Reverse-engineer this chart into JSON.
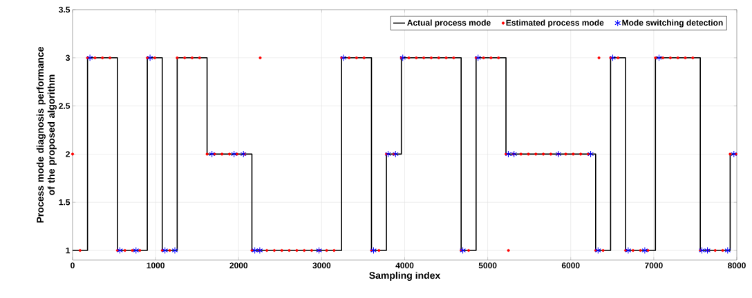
{
  "chart_data": {
    "type": "step",
    "xlabel": "Sampling index",
    "ylabel": "Process mode diagnosis performance of the proposed algorithm",
    "xlim": [
      0,
      8000
    ],
    "ylim": [
      0.9,
      3.5
    ],
    "xticks": [
      0,
      1000,
      2000,
      3000,
      4000,
      5000,
      6000,
      7000,
      8000
    ],
    "yticks": [
      1,
      1.5,
      2,
      2.5,
      3,
      3.5
    ],
    "grid": true,
    "legend": "top right",
    "series": [
      {
        "name": "Actual process mode",
        "color": "#000000",
        "marker": "none",
        "line_style": "solid",
        "x": [
          0,
          180,
          540,
          900,
          1080,
          1260,
          1620,
          2160,
          3240,
          3600,
          3780,
          3960,
          4680,
          4860,
          5220,
          6300,
          6480,
          6660,
          7020,
          7560,
          7920,
          8000
        ],
        "values": [
          1,
          3,
          1,
          3,
          1,
          3,
          2,
          1,
          3,
          1,
          2,
          3,
          1,
          3,
          2,
          1,
          3,
          1,
          3,
          1,
          2,
          2
        ]
      },
      {
        "name": "Estimated process mode",
        "type": "scatter",
        "color": "#ff0000",
        "marker": "circle",
        "x": [
          0,
          90,
          180,
          270,
          360,
          450,
          540,
          630,
          720,
          810,
          900,
          990,
          1080,
          1170,
          1260,
          1350,
          1440,
          1530,
          1620,
          1710,
          1800,
          1890,
          1980,
          2070,
          2160,
          2250,
          2260,
          2340,
          2430,
          2520,
          2610,
          2700,
          2790,
          2880,
          2970,
          3060,
          3150,
          3240,
          3330,
          3420,
          3510,
          3600,
          3690,
          3780,
          3870,
          3960,
          4050,
          4140,
          4230,
          4320,
          4410,
          4500,
          4590,
          4680,
          4770,
          4860,
          4950,
          5040,
          5130,
          5220,
          5250,
          5310,
          5400,
          5490,
          5580,
          5670,
          5760,
          5850,
          5940,
          6030,
          6120,
          6210,
          6300,
          6340,
          6390,
          6480,
          6570,
          6660,
          6750,
          6840,
          6930,
          7020,
          7110,
          7200,
          7290,
          7380,
          7470,
          7560,
          7650,
          7740,
          7830,
          7920,
          7990
        ],
        "values": [
          2,
          1,
          3,
          3,
          3,
          3,
          1,
          1,
          1,
          1,
          3,
          3,
          1,
          1,
          3,
          3,
          3,
          3,
          2,
          2,
          2,
          2,
          2,
          2,
          1,
          1,
          3,
          1,
          1,
          1,
          1,
          1,
          1,
          1,
          1,
          1,
          1,
          3,
          3,
          3,
          3,
          1,
          1,
          2,
          2,
          3,
          3,
          3,
          3,
          3,
          3,
          3,
          3,
          1,
          1,
          3,
          3,
          3,
          3,
          2,
          1,
          2,
          2,
          2,
          2,
          2,
          2,
          2,
          2,
          2,
          2,
          2,
          1,
          3,
          1,
          3,
          3,
          1,
          1,
          1,
          1,
          3,
          3,
          3,
          3,
          3,
          3,
          1,
          1,
          1,
          1,
          2,
          2
        ]
      },
      {
        "name": "Mode switching detection",
        "type": "scatter",
        "color": "#0000ff",
        "marker": "cross",
        "x": [
          209,
          570,
          764,
          933,
          1113,
          1232,
          1679,
          1945,
          2058,
          2195,
          2255,
          2968,
          3262,
          3625,
          3800,
          3890,
          3977,
          4700,
          4884,
          5248,
          5317,
          5852,
          6240,
          6329,
          6506,
          6692,
          6892,
          7063,
          7580,
          7647,
          7890,
          7965
        ],
        "values": [
          3,
          1,
          1,
          3,
          1,
          1,
          2,
          2,
          2,
          1,
          1,
          1,
          3,
          1,
          2,
          2,
          3,
          1,
          3,
          2,
          2,
          2,
          2,
          1,
          3,
          1,
          1,
          3,
          1,
          1,
          1,
          2
        ]
      }
    ]
  }
}
